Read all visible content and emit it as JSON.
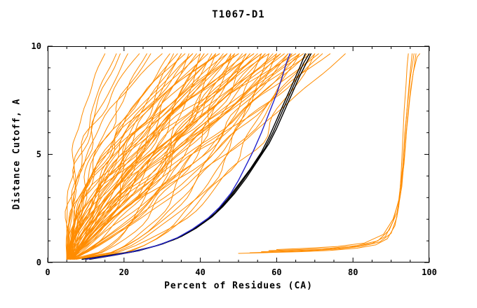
{
  "chart_data": {
    "type": "line",
    "title": "T1067-D1",
    "xlabel": "Percent of Residues (CA)",
    "ylabel": "Distance Cutoff, A",
    "xlim": [
      0,
      100
    ],
    "ylim": [
      0,
      10
    ],
    "xticks": [
      0,
      20,
      40,
      60,
      80,
      100
    ],
    "xtick_labels": [
      "0",
      "20",
      "40",
      "60",
      "80",
      "100"
    ],
    "yticks": [
      0,
      5,
      10
    ],
    "ytick_labels": [
      "0",
      "5",
      "10"
    ],
    "x_minor_step": 5,
    "y_minor_step": 1,
    "grid": false,
    "legend": "none",
    "colors": {
      "models": "#FF8C00",
      "best": "#000000",
      "reference": "#2222CC",
      "frame": "#000000"
    },
    "y_range_curves": [
      0.15,
      9.65
    ],
    "model_curves": [
      [
        5,
        15,
        2.6
      ],
      [
        5.5,
        18,
        2.2
      ],
      [
        6,
        21,
        2.0
      ],
      [
        5,
        24,
        2.3
      ],
      [
        6.5,
        27,
        1.8
      ],
      [
        5.5,
        30,
        2.5
      ],
      [
        6,
        26,
        1.6
      ],
      [
        5,
        19,
        1.9
      ],
      [
        5,
        32,
        1.4
      ],
      [
        6,
        33,
        0.9
      ],
      [
        5.5,
        34,
        1.7
      ],
      [
        6.5,
        35,
        1.1
      ],
      [
        5,
        36,
        2.0
      ],
      [
        6,
        37,
        0.8
      ],
      [
        5.5,
        38,
        1.5
      ],
      [
        6.5,
        39,
        1.2
      ],
      [
        5,
        40,
        1.8
      ],
      [
        6,
        41,
        1.0
      ],
      [
        5.5,
        42,
        1.6
      ],
      [
        6.5,
        43,
        0.9
      ],
      [
        5,
        44,
        1.3
      ],
      [
        6,
        45,
        2.1
      ],
      [
        5.5,
        46,
        1.1
      ],
      [
        6.5,
        47,
        1.7
      ],
      [
        5,
        48,
        0.85
      ],
      [
        6,
        49,
        1.4
      ],
      [
        5.5,
        50,
        1.9
      ],
      [
        6.5,
        51,
        1.05
      ],
      [
        5,
        52,
        1.5
      ],
      [
        6,
        53,
        0.9
      ],
      [
        5.5,
        54,
        1.7
      ],
      [
        6.5,
        55,
        1.2
      ],
      [
        5,
        56,
        1.45
      ],
      [
        6,
        57,
        0.95
      ],
      [
        5.5,
        58,
        1.6
      ],
      [
        6.5,
        60,
        1.25
      ],
      [
        5.2,
        35,
        1.3
      ],
      [
        6.2,
        38,
        1.9
      ],
      [
        5.8,
        41,
        0.95
      ],
      [
        6.8,
        44,
        1.55
      ],
      [
        5.2,
        47,
        1.15
      ],
      [
        6.2,
        50,
        1.75
      ],
      [
        5.8,
        53,
        1.0
      ],
      [
        6.8,
        56,
        1.35
      ],
      [
        5.2,
        59,
        0.9
      ],
      [
        6.2,
        61,
        1.45
      ],
      [
        5.8,
        45,
        2.2
      ],
      [
        6.8,
        49,
        0.75
      ],
      [
        5.2,
        54,
        1.6
      ],
      [
        6.2,
        57,
        1.1
      ],
      [
        5.8,
        63,
        1.0
      ],
      [
        6.8,
        66,
        1.3
      ],
      [
        5,
        61,
        0.9
      ],
      [
        6,
        62,
        1.3
      ],
      [
        5.5,
        63,
        0.75
      ],
      [
        6.5,
        64,
        1.1
      ],
      [
        5,
        65,
        1.5
      ],
      [
        6,
        66,
        0.85
      ],
      [
        5.5,
        67,
        1.2
      ],
      [
        6.5,
        68,
        0.95
      ],
      [
        5,
        69,
        1.35
      ],
      [
        6,
        70,
        0.8
      ],
      [
        5.5,
        71,
        1.1
      ],
      [
        6.5,
        72,
        0.9
      ],
      [
        5,
        74,
        1.05
      ],
      [
        6,
        78,
        0.85
      ],
      [
        6,
        40,
        0.45
      ],
      [
        7,
        44,
        0.5
      ],
      [
        6.5,
        48,
        0.4
      ],
      [
        7.5,
        52,
        0.55
      ],
      [
        6,
        56,
        0.45
      ],
      [
        7,
        60,
        0.5
      ],
      [
        6.5,
        64,
        0.42
      ],
      [
        7.5,
        66,
        0.52
      ],
      [
        6,
        70,
        0.48
      ],
      [
        7,
        58,
        0.38
      ]
    ],
    "outlier_curves": [
      [
        [
          50,
          0.42
        ],
        [
          58,
          0.46
        ],
        [
          66,
          0.5
        ],
        [
          74,
          0.56
        ],
        [
          81,
          0.66
        ],
        [
          86,
          0.82
        ],
        [
          89,
          1.1
        ],
        [
          91,
          1.7
        ],
        [
          92,
          2.6
        ],
        [
          92.6,
          4.0
        ],
        [
          93,
          5.5
        ],
        [
          93.4,
          7.0
        ],
        [
          93.9,
          8.2
        ],
        [
          94.2,
          9.1
        ],
        [
          94.5,
          9.65
        ]
      ],
      [
        [
          53,
          0.45
        ],
        [
          61,
          0.5
        ],
        [
          69,
          0.55
        ],
        [
          76,
          0.62
        ],
        [
          82,
          0.74
        ],
        [
          87,
          0.95
        ],
        [
          90,
          1.35
        ],
        [
          91.5,
          2.1
        ],
        [
          92.5,
          3.2
        ],
        [
          93.2,
          4.8
        ],
        [
          93.8,
          6.3
        ],
        [
          94.4,
          7.6
        ],
        [
          95,
          8.8
        ],
        [
          95.5,
          9.65
        ]
      ],
      [
        [
          56,
          0.5
        ],
        [
          64,
          0.55
        ],
        [
          72,
          0.6
        ],
        [
          79,
          0.7
        ],
        [
          85,
          0.88
        ],
        [
          88.5,
          1.2
        ],
        [
          90.5,
          1.9
        ],
        [
          92,
          2.9
        ],
        [
          93,
          4.4
        ],
        [
          93.6,
          6.0
        ],
        [
          94.3,
          7.3
        ],
        [
          95,
          8.5
        ],
        [
          95.7,
          9.3
        ],
        [
          96,
          9.65
        ]
      ],
      [
        [
          58,
          0.55
        ],
        [
          66,
          0.6
        ],
        [
          74,
          0.66
        ],
        [
          81,
          0.78
        ],
        [
          86.5,
          1.0
        ],
        [
          89.5,
          1.5
        ],
        [
          91.5,
          2.3
        ],
        [
          92.8,
          3.5
        ],
        [
          93.6,
          5.2
        ],
        [
          94.3,
          6.7
        ],
        [
          95.1,
          8.0
        ],
        [
          96,
          9.0
        ],
        [
          96.5,
          9.65
        ]
      ],
      [
        [
          60,
          0.6
        ],
        [
          68,
          0.66
        ],
        [
          76,
          0.74
        ],
        [
          83,
          0.9
        ],
        [
          88,
          1.3
        ],
        [
          90.5,
          2.0
        ],
        [
          92.3,
          3.0
        ],
        [
          93.4,
          4.6
        ],
        [
          94.1,
          6.2
        ],
        [
          94.9,
          7.6
        ],
        [
          95.8,
          8.8
        ],
        [
          96.8,
          9.5
        ],
        [
          97.5,
          9.65
        ]
      ]
    ],
    "best_curves": [
      [
        [
          9,
          0.15
        ],
        [
          15,
          0.3
        ],
        [
          22,
          0.5
        ],
        [
          28,
          0.75
        ],
        [
          33,
          1.05
        ],
        [
          37,
          1.4
        ],
        [
          41,
          1.85
        ],
        [
          44,
          2.3
        ],
        [
          47,
          2.9
        ],
        [
          50,
          3.6
        ],
        [
          53,
          4.3
        ],
        [
          56,
          5.1
        ],
        [
          58,
          5.8
        ],
        [
          60,
          6.6
        ],
        [
          62,
          7.4
        ],
        [
          64,
          8.2
        ],
        [
          66,
          9.0
        ],
        [
          67.5,
          9.65
        ]
      ],
      [
        [
          11,
          0.15
        ],
        [
          17,
          0.32
        ],
        [
          24,
          0.55
        ],
        [
          30,
          0.85
        ],
        [
          35,
          1.2
        ],
        [
          39,
          1.6
        ],
        [
          43,
          2.1
        ],
        [
          46,
          2.6
        ],
        [
          49,
          3.2
        ],
        [
          52,
          3.9
        ],
        [
          55,
          4.7
        ],
        [
          58,
          5.5
        ],
        [
          60,
          6.2
        ],
        [
          62,
          7.0
        ],
        [
          64,
          7.8
        ],
        [
          66,
          8.6
        ],
        [
          68,
          9.3
        ],
        [
          69,
          9.65
        ]
      ],
      [
        [
          10,
          0.15
        ],
        [
          16,
          0.3
        ],
        [
          23,
          0.52
        ],
        [
          29,
          0.8
        ],
        [
          34,
          1.12
        ],
        [
          38,
          1.5
        ],
        [
          42,
          2.0
        ],
        [
          45,
          2.45
        ],
        [
          48,
          3.05
        ],
        [
          51,
          3.75
        ],
        [
          54,
          4.5
        ],
        [
          57,
          5.3
        ],
        [
          59,
          6.0
        ],
        [
          61,
          6.8
        ],
        [
          63,
          7.6
        ],
        [
          65,
          8.4
        ],
        [
          67,
          9.2
        ],
        [
          68.5,
          9.65
        ]
      ]
    ],
    "reference_curves": [
      [
        [
          10,
          0.15
        ],
        [
          16,
          0.3
        ],
        [
          23,
          0.52
        ],
        [
          29,
          0.8
        ],
        [
          34,
          1.15
        ],
        [
          38,
          1.55
        ],
        [
          42,
          2.05
        ],
        [
          45,
          2.55
        ],
        [
          48,
          3.2
        ],
        [
          50,
          3.8
        ],
        [
          52,
          4.5
        ],
        [
          54,
          5.2
        ],
        [
          56,
          6.0
        ],
        [
          58,
          6.9
        ],
        [
          60,
          7.8
        ],
        [
          61.5,
          8.6
        ],
        [
          62.5,
          9.2
        ],
        [
          63.5,
          9.65
        ]
      ]
    ]
  }
}
